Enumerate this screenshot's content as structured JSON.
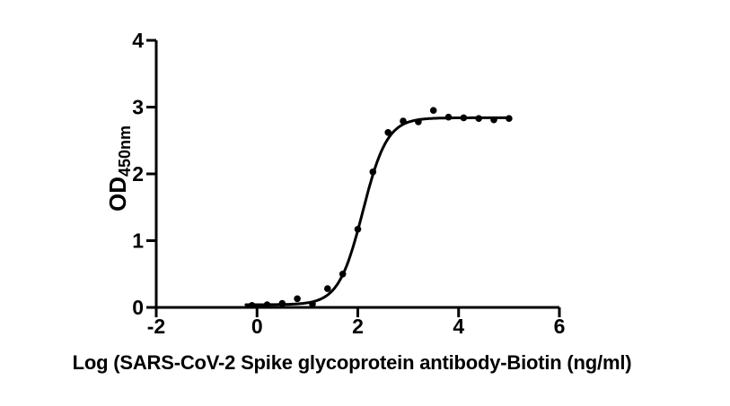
{
  "figure": {
    "background_color": "#ffffff",
    "ink_color": "#000000"
  },
  "chart_data": {
    "type": "scatter",
    "subtype": "sigmoidal-dose-response-fit",
    "title": "",
    "xlabel": "Log (SARS-CoV-2 Spike glycoprotein antibody-Biotin (ng/ml)",
    "ylabel_main": "OD",
    "ylabel_subscript": "450nm",
    "xlim": [
      -2,
      6
    ],
    "ylim": [
      0,
      4
    ],
    "x_ticks": [
      "-2",
      "0",
      "2",
      "4",
      "6"
    ],
    "x_tick_values": [
      -2,
      0,
      2,
      4,
      6
    ],
    "y_ticks": [
      "0",
      "1",
      "2",
      "3",
      "4"
    ],
    "y_tick_values": [
      0,
      1,
      2,
      3,
      4
    ],
    "grid": false,
    "legend": null,
    "marker_color": "#000000",
    "line_color": "#000000",
    "points": {
      "x": [
        -0.1,
        0.2,
        0.5,
        0.8,
        1.1,
        1.4,
        1.7,
        2.0,
        2.3,
        2.6,
        2.9,
        3.2,
        3.5,
        3.8,
        4.1,
        4.4,
        4.7,
        5.0
      ],
      "y": [
        0.03,
        0.04,
        0.06,
        0.13,
        0.05,
        0.28,
        0.5,
        1.17,
        2.03,
        2.62,
        2.79,
        2.78,
        2.95,
        2.85,
        2.84,
        2.83,
        2.81,
        2.83
      ]
    },
    "fit_curve": {
      "model": "4PL",
      "bottom": 0.04,
      "top": 2.84,
      "log_ec50": 2.1,
      "hill_slope": 1.8,
      "x_start": -0.22,
      "x_end": 5.0
    }
  }
}
